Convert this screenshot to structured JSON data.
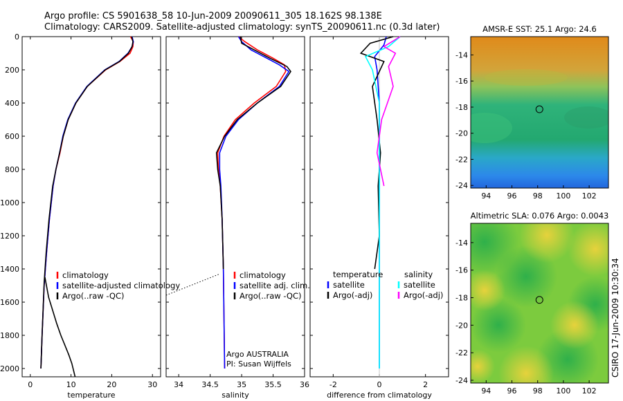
{
  "title": {
    "line1": "Argo profile: CS 5901638_58 10-Jun-2009 20090611_305 18.162S 98.138E",
    "line2": "Climatology: CARS2009. Satellite-adjusted climatology: synTS_20090611.nc (0.3d later)"
  },
  "side_label": "CSIRO 17-Jun-2009 10:30:34",
  "colors": {
    "climatology": "#ff0000",
    "satellite": "#0000ff",
    "argo": "#000000",
    "sat_diff": "#00ffff",
    "argo_sal_diff": "#ff00ff"
  },
  "chart_data": [
    {
      "type": "line",
      "name": "temperature-panel",
      "xlabel": "temperature",
      "ylabel": "",
      "xlim": [
        -2,
        32
      ],
      "ylim": [
        2050,
        0
      ],
      "xticks": [
        0,
        10,
        20,
        30
      ],
      "yticks": [
        0,
        200,
        400,
        600,
        800,
        1000,
        1200,
        1400,
        1600,
        1800,
        2000
      ],
      "legend": [
        "climatology",
        "satellite-adjusted climatology",
        "Argo(..raw -QC)"
      ],
      "series": [
        {
          "name": "climatology",
          "x": [
            24.6,
            25.3,
            25.2,
            24.5,
            22.0,
            18.5,
            14.0,
            11.2,
            9.3,
            8.1,
            7.3,
            6.3,
            5.6,
            4.7,
            4.0,
            3.4,
            2.9,
            2.6
          ],
          "y": [
            0,
            30,
            60,
            100,
            150,
            200,
            300,
            400,
            500,
            600,
            700,
            800,
            900,
            1100,
            1300,
            1500,
            1800,
            2000
          ]
        },
        {
          "name": "satellite-adjusted climatology",
          "x": [
            25.0,
            25.3,
            25.0,
            24.0,
            21.8,
            18.3,
            13.9,
            11.1,
            9.2,
            8.0,
            7.2,
            6.3,
            5.6,
            4.7,
            4.0,
            3.4,
            2.9,
            2.6
          ],
          "y": [
            0,
            30,
            60,
            100,
            150,
            200,
            300,
            400,
            500,
            600,
            700,
            800,
            900,
            1100,
            1300,
            1500,
            1800,
            2000
          ]
        },
        {
          "name": "Argo(..raw -QC)",
          "x": [
            24.9,
            25.2,
            25.0,
            24.1,
            21.9,
            18.4,
            14.0,
            11.2,
            9.3,
            8.1,
            7.2,
            6.3,
            5.5,
            4.6,
            3.9,
            3.4,
            2.9,
            2.6
          ],
          "y": [
            0,
            30,
            60,
            100,
            150,
            200,
            300,
            400,
            500,
            600,
            700,
            800,
            900,
            1100,
            1300,
            1480,
            1800,
            2000
          ]
        },
        {
          "name": "Argo(..raw -QC) deep",
          "x": [
            3.6,
            4.5,
            5.5,
            6.5,
            7.5,
            8.5,
            9.5,
            10.2,
            11.0
          ],
          "y": [
            1450,
            1570,
            1650,
            1730,
            1800,
            1860,
            1920,
            1970,
            2050
          ]
        }
      ]
    },
    {
      "type": "line",
      "name": "salinity-panel",
      "xlabel": "salinity",
      "ylabel": "",
      "xlim": [
        33.8,
        36.0
      ],
      "ylim": [
        2050,
        0
      ],
      "xticks": [
        34,
        34.5,
        35,
        35.5,
        36
      ],
      "legend": [
        "climatology",
        "satellite adj. clim.",
        "Argo(..raw -QC)"
      ],
      "annotations": [
        "Argo AUSTRALIA",
        "PI: Susan Wijffels"
      ],
      "series": [
        {
          "name": "climatology",
          "x": [
            34.95,
            35.05,
            35.25,
            35.5,
            35.68,
            35.7,
            35.55,
            35.2,
            34.9,
            34.72,
            34.62,
            34.63,
            34.66,
            34.69,
            34.71,
            34.72,
            34.73
          ],
          "y": [
            0,
            30,
            80,
            130,
            170,
            210,
            300,
            400,
            500,
            600,
            700,
            800,
            900,
            1100,
            1400,
            1700,
            2000
          ]
        },
        {
          "name": "satellite adj. clim.",
          "x": [
            34.95,
            35.0,
            35.15,
            35.4,
            35.6,
            35.75,
            35.6,
            35.25,
            34.95,
            34.75,
            34.65,
            34.65,
            34.67,
            34.69,
            34.71,
            34.72,
            34.73
          ],
          "y": [
            0,
            30,
            80,
            130,
            170,
            210,
            300,
            400,
            500,
            600,
            700,
            800,
            900,
            1100,
            1400,
            1700,
            2000
          ]
        },
        {
          "name": "Argo(..raw -QC)",
          "x": [
            34.98,
            35.0,
            35.2,
            35.45,
            35.72,
            35.78,
            35.62,
            35.25,
            34.93,
            34.73,
            34.6,
            34.62,
            34.66,
            34.69,
            34.71
          ],
          "y": [
            0,
            40,
            80,
            130,
            180,
            210,
            300,
            400,
            500,
            600,
            700,
            800,
            900,
            1100,
            1400
          ]
        }
      ]
    },
    {
      "type": "line",
      "name": "difference-panel",
      "xlabel": "difference from climatology",
      "ylabel": "",
      "xlim": [
        -3,
        3
      ],
      "ylim": [
        2050,
        0
      ],
      "xticks": [
        -2,
        0,
        2
      ],
      "legend": [
        "temperature",
        "satellite",
        "Argo(-adj)",
        "salinity",
        "satellite",
        "Argo(-adj)"
      ],
      "series": [
        {
          "name": "temperature satellite",
          "x": [
            0.3,
            0.2,
            -0.2,
            -0.1,
            0,
            0,
            0
          ],
          "y": [
            0,
            50,
            120,
            200,
            400,
            800,
            2000
          ]
        },
        {
          "name": "temperature Argo(-adj)",
          "x": [
            0.6,
            -0.4,
            -0.8,
            0.2,
            -0.3,
            -0.1,
            0.05,
            -0.05,
            0,
            -0.2
          ],
          "y": [
            0,
            40,
            100,
            150,
            300,
            500,
            700,
            900,
            1200,
            1400
          ]
        },
        {
          "name": "salinity satellite",
          "x": [
            0.9,
            0.4,
            -0.6,
            -0.3,
            0,
            0,
            0
          ],
          "y": [
            0,
            60,
            120,
            200,
            400,
            800,
            2000
          ]
        },
        {
          "name": "salinity Argo(-adj)",
          "x": [
            0.9,
            0.2,
            0.7,
            0.4,
            0.6,
            0.1,
            -0.1,
            0.2
          ],
          "y": [
            0,
            60,
            100,
            180,
            300,
            500,
            700,
            900
          ]
        }
      ]
    },
    {
      "type": "heatmap",
      "name": "sst-map",
      "title": "AMSR-E SST: 25.1 Argo: 24.6",
      "xlim": [
        92.8,
        103.5
      ],
      "ylim": [
        -24.2,
        -12.6
      ],
      "xticks": [
        94,
        96,
        98,
        100,
        102
      ],
      "yticks": [
        -24,
        -22,
        -20,
        -18,
        -16,
        -14
      ],
      "marker": {
        "x": 98.138,
        "y": -18.162
      }
    },
    {
      "type": "heatmap",
      "name": "sla-map",
      "title": "Altimetric SLA: 0.076 Argo: 0.0043",
      "xlim": [
        92.8,
        103.5
      ],
      "ylim": [
        -24.2,
        -12.6
      ],
      "xticks": [
        94,
        96,
        98,
        100,
        102
      ],
      "yticks": [
        -24,
        -22,
        -20,
        -18,
        -16,
        -14
      ],
      "marker": {
        "x": 98.138,
        "y": -18.162
      }
    }
  ]
}
